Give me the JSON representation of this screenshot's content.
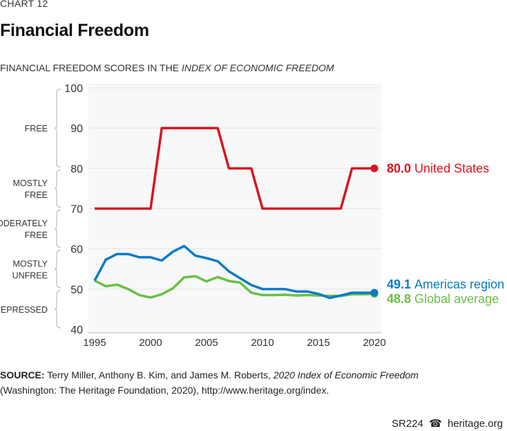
{
  "chart_label": "CHART 12",
  "title": "Financial Freedom",
  "subtitle_prefix": "FINANCIAL FREEDOM SCORES IN THE ",
  "subtitle_italic": "INDEX OF ECONOMIC FREEDOM",
  "source": {
    "label": "SOURCE:",
    "text1": " Terry Miller, Anthony B. Kim, and James M. Roberts, ",
    "italic": "2020 Index of Economic Freedom",
    "text2": "(Washington: The Heritage Foundation, 2020), http://www.heritage.org/index."
  },
  "footer": {
    "code": "SR224",
    "icon": "bell-icon",
    "site": "heritage.org"
  },
  "chart_data": {
    "type": "line",
    "x": [
      1995,
      1996,
      1997,
      1998,
      1999,
      2000,
      2001,
      2002,
      2003,
      2004,
      2005,
      2006,
      2007,
      2008,
      2009,
      2010,
      2011,
      2012,
      2013,
      2014,
      2015,
      2016,
      2017,
      2018,
      2019,
      2020
    ],
    "xlim": [
      1995,
      2020
    ],
    "ylim": [
      40,
      100
    ],
    "xticks": [
      "1995",
      "2000",
      "2005",
      "2010",
      "2015",
      "2020"
    ],
    "yticks": [
      "40",
      "50",
      "60",
      "70",
      "80",
      "90",
      "100"
    ],
    "grid": true,
    "categories_bands": [
      {
        "label": [
          "FREE"
        ],
        "range": [
          80,
          100
        ]
      },
      {
        "label": [
          "MOSTLY",
          "FREE"
        ],
        "range": [
          70,
          80
        ]
      },
      {
        "label": [
          "MODERATELY",
          "FREE"
        ],
        "range": [
          60,
          70
        ]
      },
      {
        "label": [
          "MOSTLY",
          "UNFREE"
        ],
        "range": [
          50,
          60
        ]
      },
      {
        "label": [
          "REPRESSED"
        ],
        "range": [
          40,
          50
        ]
      }
    ],
    "series": [
      {
        "name": "United States",
        "end_label": "80.0",
        "color": "#d9121f",
        "values": [
          70,
          70,
          70,
          70,
          70,
          70,
          90,
          90,
          90,
          90,
          90,
          90,
          80,
          80,
          80,
          70,
          70,
          70,
          70,
          70,
          70,
          70,
          70,
          80,
          80,
          80
        ]
      },
      {
        "name": "Americas region",
        "end_label": "49.1",
        "color": "#0a7bc6",
        "values": [
          52.1,
          57.3,
          58.7,
          58.7,
          57.9,
          57.9,
          57.1,
          59.3,
          60.7,
          58.3,
          57.7,
          56.9,
          54.4,
          52.7,
          51.0,
          50.0,
          50.0,
          50.0,
          49.4,
          49.4,
          48.8,
          47.8,
          48.4,
          49.1,
          49.1,
          49.1
        ]
      },
      {
        "name": "Global average",
        "end_label": "48.8",
        "color": "#6abf44",
        "values": [
          52.1,
          50.7,
          51.1,
          50.0,
          48.5,
          47.9,
          48.7,
          50.2,
          52.9,
          53.2,
          51.9,
          53.0,
          52.0,
          51.6,
          49.1,
          48.5,
          48.5,
          48.6,
          48.4,
          48.5,
          48.4,
          48.3,
          48.3,
          48.7,
          48.7,
          48.8
        ]
      }
    ]
  }
}
